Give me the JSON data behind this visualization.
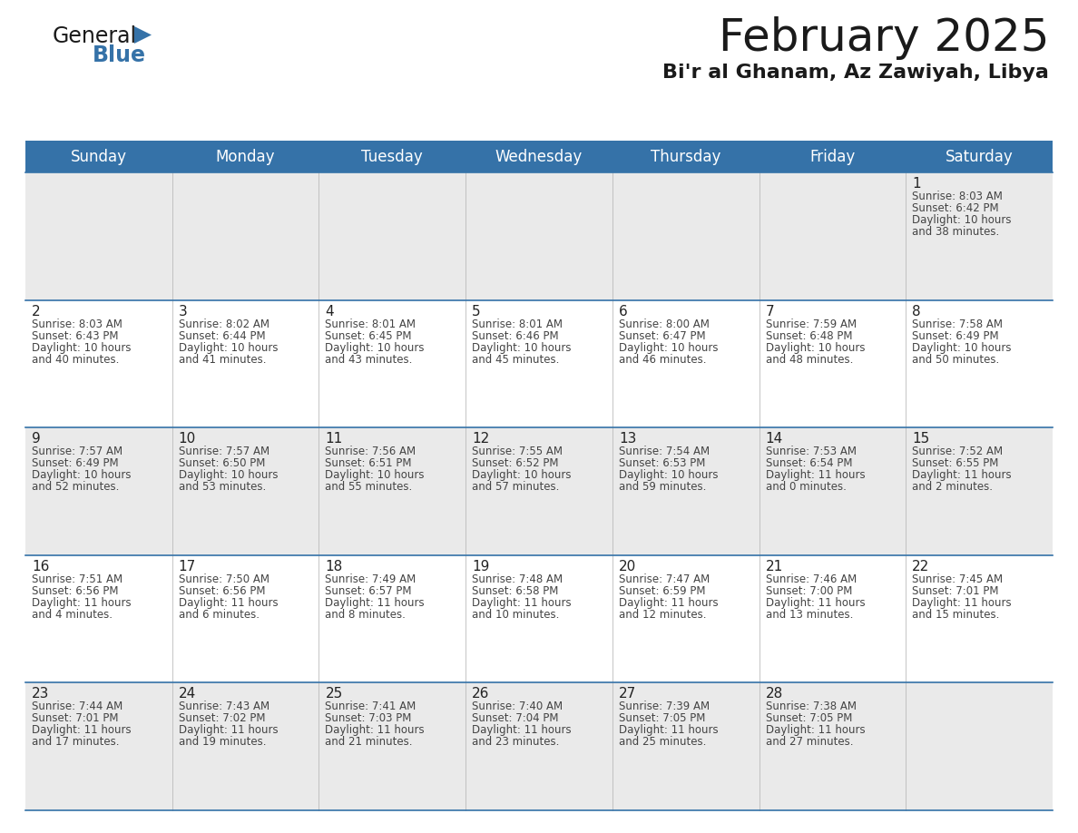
{
  "title": "February 2025",
  "subtitle": "Bi'r al Ghanam, Az Zawiyah, Libya",
  "header_bg_color": "#3572A8",
  "header_text_color": "#FFFFFF",
  "border_color": "#3572A8",
  "row_bg_even": "#EAEAEA",
  "row_bg_odd": "#FFFFFF",
  "day_number_color": "#222222",
  "info_text_color": "#444444",
  "days_of_week": [
    "Sunday",
    "Monday",
    "Tuesday",
    "Wednesday",
    "Thursday",
    "Friday",
    "Saturday"
  ],
  "calendar_data": [
    [
      null,
      null,
      null,
      null,
      null,
      null,
      {
        "day": 1,
        "sunrise": "8:03 AM",
        "sunset": "6:42 PM",
        "daylight": "10 hours and 38 minutes."
      }
    ],
    [
      {
        "day": 2,
        "sunrise": "8:03 AM",
        "sunset": "6:43 PM",
        "daylight": "10 hours and 40 minutes."
      },
      {
        "day": 3,
        "sunrise": "8:02 AM",
        "sunset": "6:44 PM",
        "daylight": "10 hours and 41 minutes."
      },
      {
        "day": 4,
        "sunrise": "8:01 AM",
        "sunset": "6:45 PM",
        "daylight": "10 hours and 43 minutes."
      },
      {
        "day": 5,
        "sunrise": "8:01 AM",
        "sunset": "6:46 PM",
        "daylight": "10 hours and 45 minutes."
      },
      {
        "day": 6,
        "sunrise": "8:00 AM",
        "sunset": "6:47 PM",
        "daylight": "10 hours and 46 minutes."
      },
      {
        "day": 7,
        "sunrise": "7:59 AM",
        "sunset": "6:48 PM",
        "daylight": "10 hours and 48 minutes."
      },
      {
        "day": 8,
        "sunrise": "7:58 AM",
        "sunset": "6:49 PM",
        "daylight": "10 hours and 50 minutes."
      }
    ],
    [
      {
        "day": 9,
        "sunrise": "7:57 AM",
        "sunset": "6:49 PM",
        "daylight": "10 hours and 52 minutes."
      },
      {
        "day": 10,
        "sunrise": "7:57 AM",
        "sunset": "6:50 PM",
        "daylight": "10 hours and 53 minutes."
      },
      {
        "day": 11,
        "sunrise": "7:56 AM",
        "sunset": "6:51 PM",
        "daylight": "10 hours and 55 minutes."
      },
      {
        "day": 12,
        "sunrise": "7:55 AM",
        "sunset": "6:52 PM",
        "daylight": "10 hours and 57 minutes."
      },
      {
        "day": 13,
        "sunrise": "7:54 AM",
        "sunset": "6:53 PM",
        "daylight": "10 hours and 59 minutes."
      },
      {
        "day": 14,
        "sunrise": "7:53 AM",
        "sunset": "6:54 PM",
        "daylight": "11 hours and 0 minutes."
      },
      {
        "day": 15,
        "sunrise": "7:52 AM",
        "sunset": "6:55 PM",
        "daylight": "11 hours and 2 minutes."
      }
    ],
    [
      {
        "day": 16,
        "sunrise": "7:51 AM",
        "sunset": "6:56 PM",
        "daylight": "11 hours and 4 minutes."
      },
      {
        "day": 17,
        "sunrise": "7:50 AM",
        "sunset": "6:56 PM",
        "daylight": "11 hours and 6 minutes."
      },
      {
        "day": 18,
        "sunrise": "7:49 AM",
        "sunset": "6:57 PM",
        "daylight": "11 hours and 8 minutes."
      },
      {
        "day": 19,
        "sunrise": "7:48 AM",
        "sunset": "6:58 PM",
        "daylight": "11 hours and 10 minutes."
      },
      {
        "day": 20,
        "sunrise": "7:47 AM",
        "sunset": "6:59 PM",
        "daylight": "11 hours and 12 minutes."
      },
      {
        "day": 21,
        "sunrise": "7:46 AM",
        "sunset": "7:00 PM",
        "daylight": "11 hours and 13 minutes."
      },
      {
        "day": 22,
        "sunrise": "7:45 AM",
        "sunset": "7:01 PM",
        "daylight": "11 hours and 15 minutes."
      }
    ],
    [
      {
        "day": 23,
        "sunrise": "7:44 AM",
        "sunset": "7:01 PM",
        "daylight": "11 hours and 17 minutes."
      },
      {
        "day": 24,
        "sunrise": "7:43 AM",
        "sunset": "7:02 PM",
        "daylight": "11 hours and 19 minutes."
      },
      {
        "day": 25,
        "sunrise": "7:41 AM",
        "sunset": "7:03 PM",
        "daylight": "11 hours and 21 minutes."
      },
      {
        "day": 26,
        "sunrise": "7:40 AM",
        "sunset": "7:04 PM",
        "daylight": "11 hours and 23 minutes."
      },
      {
        "day": 27,
        "sunrise": "7:39 AM",
        "sunset": "7:05 PM",
        "daylight": "11 hours and 25 minutes."
      },
      {
        "day": 28,
        "sunrise": "7:38 AM",
        "sunset": "7:05 PM",
        "daylight": "11 hours and 27 minutes."
      },
      null
    ]
  ],
  "logo_text_general": "General",
  "logo_text_blue": "Blue",
  "logo_triangle_color": "#3572A8",
  "title_fontsize": 36,
  "subtitle_fontsize": 16,
  "header_fontsize": 12,
  "day_num_fontsize": 11,
  "info_fontsize": 8.5,
  "fig_width": 11.88,
  "fig_height": 9.18,
  "dpi": 100
}
